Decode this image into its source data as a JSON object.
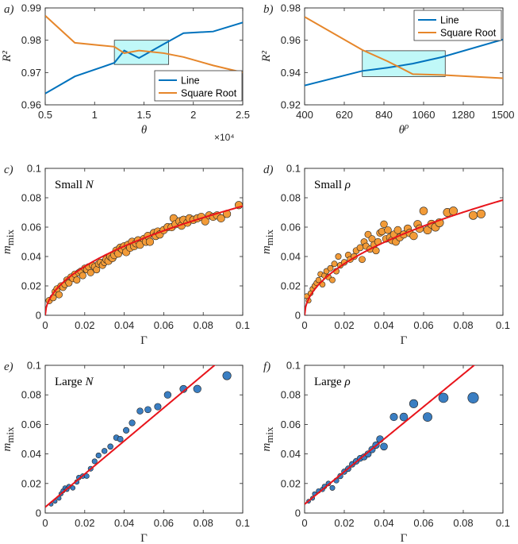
{
  "colors": {
    "line": "#0072BD",
    "sqrt": "#EDB120",
    "sqrt_line": "#E6862A",
    "fit": "#E8141B",
    "orange_pt": "#F29B38",
    "blue_pt": "#3A7EC2",
    "box": "#8CF2F2",
    "axis": "#262626"
  },
  "chart_data": [
    {
      "id": "a",
      "type": "line",
      "panel_label": "a)",
      "xlabel": "θ",
      "ylabel": "R²",
      "xlim": [
        5000,
        25000
      ],
      "ylim": [
        0.96,
        0.99
      ],
      "xticks": [
        5000,
        10000,
        15000,
        20000,
        25000
      ],
      "xtick_labels": [
        "0.5",
        "1",
        "1.5",
        "2",
        "2.5"
      ],
      "yticks": [
        0.96,
        0.97,
        0.98,
        0.99
      ],
      "ytick_labels": [
        "0.96",
        "0.97",
        "0.98",
        "0.99"
      ],
      "x_exponent": "×10⁴",
      "legend_position": "bottom-right",
      "box": {
        "x": [
          12000,
          17500
        ],
        "y": [
          0.9725,
          0.98
        ]
      },
      "series": [
        {
          "name": "Line",
          "color": "#0072BD",
          "x": [
            5000,
            8000,
            12000,
            13000,
            14500,
            17000,
            19000,
            22000,
            25000
          ],
          "y": [
            0.9635,
            0.9688,
            0.973,
            0.9768,
            0.9745,
            0.9788,
            0.9822,
            0.9827,
            0.9855
          ]
        },
        {
          "name": "Square Root",
          "color": "#E6862A",
          "x": [
            5000,
            8000,
            12000,
            13000,
            14500,
            17000,
            19000,
            22000,
            25000
          ],
          "y": [
            0.9876,
            0.9792,
            0.978,
            0.976,
            0.9768,
            0.976,
            0.9748,
            0.9722,
            0.97
          ]
        }
      ]
    },
    {
      "id": "b",
      "type": "line",
      "panel_label": "b)",
      "xlabel": "θ",
      "xlabel_sup": "ρ",
      "ylabel": "R²",
      "xlim": [
        400,
        1500
      ],
      "ylim": [
        0.92,
        0.98
      ],
      "xticks": [
        400,
        620,
        840,
        1060,
        1280,
        1500
      ],
      "xtick_labels": [
        "400",
        "620",
        "840",
        "1060",
        "1280",
        "1500"
      ],
      "yticks": [
        0.92,
        0.94,
        0.96,
        0.98
      ],
      "ytick_labels": [
        "0.92",
        "0.94",
        "0.96",
        "0.98"
      ],
      "legend_position": "top-right",
      "box": {
        "x": [
          720,
          1180
        ],
        "y": [
          0.9375,
          0.9535
        ]
      },
      "series": [
        {
          "name": "Line",
          "color": "#0072BD",
          "x": [
            400,
            720,
            860,
            1000,
            1160,
            1500
          ],
          "y": [
            0.932,
            0.941,
            0.943,
            0.9455,
            0.9495,
            0.9605
          ]
        },
        {
          "name": "Square Root",
          "color": "#E6862A",
          "x": [
            400,
            720,
            860,
            1000,
            1160,
            1500
          ],
          "y": [
            0.9745,
            0.954,
            0.947,
            0.939,
            0.9385,
            0.9365
          ]
        }
      ]
    },
    {
      "id": "c",
      "type": "scatter",
      "panel_label": "c)",
      "annotation_text": "Small",
      "annotation_var": "N",
      "xlabel": "Γ",
      "ylabel": "m",
      "ylabel_sub": "mix",
      "xlim": [
        0,
        0.1
      ],
      "ylim": [
        0,
        0.1
      ],
      "xticks": [
        0,
        0.02,
        0.04,
        0.06,
        0.08,
        0.1
      ],
      "xtick_labels": [
        "0",
        "0.02",
        "0.04",
        "0.06",
        "0.08",
        "0.1"
      ],
      "yticks": [
        0,
        0.02,
        0.04,
        0.06,
        0.08,
        0.1
      ],
      "ytick_labels": [
        "0",
        "0.02",
        "0.04",
        "0.06",
        "0.08",
        "0.1"
      ],
      "fit": {
        "kind": "sqrt",
        "a": 0.235,
        "color": "#E8141B"
      },
      "points": [
        [
          0.002,
          0.01
        ],
        [
          0.004,
          0.012
        ],
        [
          0.005,
          0.016
        ],
        [
          0.006,
          0.018
        ],
        [
          0.007,
          0.014
        ],
        [
          0.008,
          0.02
        ],
        [
          0.009,
          0.019
        ],
        [
          0.01,
          0.021
        ],
        [
          0.011,
          0.024
        ],
        [
          0.012,
          0.022
        ],
        [
          0.013,
          0.026
        ],
        [
          0.014,
          0.025
        ],
        [
          0.015,
          0.028
        ],
        [
          0.016,
          0.024
        ],
        [
          0.017,
          0.029
        ],
        [
          0.018,
          0.03
        ],
        [
          0.019,
          0.027
        ],
        [
          0.02,
          0.032
        ],
        [
          0.021,
          0.031
        ],
        [
          0.022,
          0.033
        ],
        [
          0.023,
          0.029
        ],
        [
          0.024,
          0.034
        ],
        [
          0.025,
          0.033
        ],
        [
          0.026,
          0.031
        ],
        [
          0.027,
          0.035
        ],
        [
          0.028,
          0.036
        ],
        [
          0.029,
          0.034
        ],
        [
          0.03,
          0.036
        ],
        [
          0.031,
          0.038
        ],
        [
          0.032,
          0.037
        ],
        [
          0.033,
          0.04
        ],
        [
          0.034,
          0.039
        ],
        [
          0.035,
          0.041
        ],
        [
          0.036,
          0.044
        ],
        [
          0.037,
          0.042
        ],
        [
          0.038,
          0.046
        ],
        [
          0.039,
          0.045
        ],
        [
          0.04,
          0.047
        ],
        [
          0.041,
          0.043
        ],
        [
          0.042,
          0.048
        ],
        [
          0.043,
          0.046
        ],
        [
          0.044,
          0.05
        ],
        [
          0.045,
          0.047
        ],
        [
          0.046,
          0.049
        ],
        [
          0.047,
          0.051
        ],
        [
          0.048,
          0.048
        ],
        [
          0.05,
          0.052
        ],
        [
          0.051,
          0.05
        ],
        [
          0.052,
          0.054
        ],
        [
          0.053,
          0.05
        ],
        [
          0.055,
          0.056
        ],
        [
          0.056,
          0.054
        ],
        [
          0.057,
          0.057
        ],
        [
          0.058,
          0.055
        ],
        [
          0.06,
          0.058
        ],
        [
          0.062,
          0.06
        ],
        [
          0.064,
          0.06
        ],
        [
          0.065,
          0.066
        ],
        [
          0.066,
          0.062
        ],
        [
          0.068,
          0.064
        ],
        [
          0.069,
          0.061
        ],
        [
          0.07,
          0.065
        ],
        [
          0.072,
          0.063
        ],
        [
          0.073,
          0.066
        ],
        [
          0.075,
          0.065
        ],
        [
          0.077,
          0.066
        ],
        [
          0.079,
          0.067
        ],
        [
          0.081,
          0.064
        ],
        [
          0.083,
          0.068
        ],
        [
          0.085,
          0.067
        ],
        [
          0.087,
          0.068
        ],
        [
          0.089,
          0.066
        ],
        [
          0.092,
          0.069
        ],
        [
          0.098,
          0.075
        ]
      ]
    },
    {
      "id": "d",
      "type": "scatter",
      "panel_label": "d)",
      "annotation_text": "Small",
      "annotation_var": "ρ",
      "xlabel": "Γ",
      "ylabel": "m",
      "ylabel_sub": "mix",
      "xlim": [
        0,
        0.1
      ],
      "ylim": [
        0,
        0.1
      ],
      "xticks": [
        0,
        0.02,
        0.04,
        0.06,
        0.08,
        0.1
      ],
      "xtick_labels": [
        "0",
        "0.02",
        "0.04",
        "0.06",
        "0.08",
        "0.1"
      ],
      "yticks": [
        0,
        0.02,
        0.04,
        0.06,
        0.08,
        0.1
      ],
      "ytick_labels": [
        "0",
        "0.02",
        "0.04",
        "0.06",
        "0.08",
        "0.1"
      ],
      "fit": {
        "kind": "sqrt",
        "a": 0.248,
        "color": "#E8141B"
      },
      "points": [
        [
          0.001,
          0.013
        ],
        [
          0.002,
          0.01
        ],
        [
          0.003,
          0.015
        ],
        [
          0.004,
          0.018
        ],
        [
          0.005,
          0.02
        ],
        [
          0.006,
          0.022
        ],
        [
          0.007,
          0.024
        ],
        [
          0.008,
          0.028
        ],
        [
          0.009,
          0.021
        ],
        [
          0.01,
          0.027
        ],
        [
          0.011,
          0.03
        ],
        [
          0.012,
          0.026
        ],
        [
          0.013,
          0.032
        ],
        [
          0.014,
          0.024
        ],
        [
          0.015,
          0.035
        ],
        [
          0.016,
          0.03
        ],
        [
          0.017,
          0.04
        ],
        [
          0.018,
          0.034
        ],
        [
          0.02,
          0.036
        ],
        [
          0.022,
          0.041
        ],
        [
          0.023,
          0.038
        ],
        [
          0.025,
          0.04
        ],
        [
          0.026,
          0.044
        ],
        [
          0.028,
          0.046
        ],
        [
          0.029,
          0.038
        ],
        [
          0.03,
          0.05
        ],
        [
          0.031,
          0.047
        ],
        [
          0.032,
          0.055
        ],
        [
          0.033,
          0.045
        ],
        [
          0.034,
          0.052
        ],
        [
          0.035,
          0.048
        ],
        [
          0.036,
          0.044
        ],
        [
          0.037,
          0.05
        ],
        [
          0.038,
          0.056
        ],
        [
          0.039,
          0.057
        ],
        [
          0.04,
          0.062
        ],
        [
          0.041,
          0.052
        ],
        [
          0.042,
          0.058
        ],
        [
          0.043,
          0.053
        ],
        [
          0.044,
          0.051
        ],
        [
          0.045,
          0.055
        ],
        [
          0.046,
          0.05
        ],
        [
          0.047,
          0.058
        ],
        [
          0.048,
          0.053
        ],
        [
          0.05,
          0.055
        ],
        [
          0.052,
          0.059
        ],
        [
          0.053,
          0.056
        ],
        [
          0.055,
          0.054
        ],
        [
          0.057,
          0.062
        ],
        [
          0.058,
          0.059
        ],
        [
          0.06,
          0.071
        ],
        [
          0.062,
          0.058
        ],
        [
          0.064,
          0.062
        ],
        [
          0.066,
          0.06
        ],
        [
          0.068,
          0.063
        ],
        [
          0.072,
          0.07
        ],
        [
          0.075,
          0.071
        ],
        [
          0.085,
          0.068
        ],
        [
          0.089,
          0.069
        ]
      ]
    },
    {
      "id": "e",
      "type": "scatter",
      "panel_label": "e)",
      "annotation_text": "Large",
      "annotation_var": "N",
      "xlabel": "Γ",
      "ylabel": "m",
      "ylabel_sub": "mix",
      "xlim": [
        0,
        0.1
      ],
      "ylim": [
        0,
        0.1
      ],
      "xticks": [
        0,
        0.02,
        0.04,
        0.06,
        0.08,
        0.1
      ],
      "xtick_labels": [
        "0",
        "0.02",
        "0.04",
        "0.06",
        "0.08",
        "0.1"
      ],
      "yticks": [
        0,
        0.02,
        0.04,
        0.06,
        0.08,
        0.1
      ],
      "ytick_labels": [
        "0",
        "0.02",
        "0.04",
        "0.06",
        "0.08",
        "0.1"
      ],
      "fit": {
        "kind": "linear",
        "slope": 1.12,
        "intercept": 0.004,
        "color": "#E8141B"
      },
      "points": [
        [
          0.003,
          0.006
        ],
        [
          0.005,
          0.008
        ],
        [
          0.007,
          0.01
        ],
        [
          0.008,
          0.013
        ],
        [
          0.009,
          0.015
        ],
        [
          0.01,
          0.017
        ],
        [
          0.011,
          0.016
        ],
        [
          0.012,
          0.018
        ],
        [
          0.014,
          0.017
        ],
        [
          0.016,
          0.021
        ],
        [
          0.017,
          0.024
        ],
        [
          0.019,
          0.025
        ],
        [
          0.021,
          0.025
        ],
        [
          0.023,
          0.03
        ],
        [
          0.025,
          0.035
        ],
        [
          0.027,
          0.039
        ],
        [
          0.03,
          0.042
        ],
        [
          0.033,
          0.045
        ],
        [
          0.036,
          0.051
        ],
        [
          0.038,
          0.05
        ],
        [
          0.041,
          0.056
        ],
        [
          0.044,
          0.061
        ],
        [
          0.048,
          0.069
        ],
        [
          0.052,
          0.07
        ],
        [
          0.057,
          0.072
        ],
        [
          0.062,
          0.08
        ],
        [
          0.07,
          0.084
        ],
        [
          0.077,
          0.084
        ],
        [
          0.092,
          0.093
        ]
      ]
    },
    {
      "id": "f",
      "type": "scatter",
      "panel_label": "f)",
      "annotation_text": "Large",
      "annotation_var": "ρ",
      "xlabel": "Γ",
      "ylabel": "m",
      "ylabel_sub": "mix",
      "xlim": [
        0,
        0.1
      ],
      "ylim": [
        0,
        0.1
      ],
      "xticks": [
        0,
        0.02,
        0.04,
        0.06,
        0.08,
        0.1
      ],
      "xtick_labels": [
        "0",
        "0.02",
        "0.04",
        "0.06",
        "0.08",
        "0.1"
      ],
      "yticks": [
        0,
        0.02,
        0.04,
        0.06,
        0.08,
        0.1
      ],
      "ytick_labels": [
        "0",
        "0.02",
        "0.04",
        "0.06",
        "0.08",
        "0.1"
      ],
      "fit": {
        "kind": "linear",
        "slope": 1.1,
        "intercept": 0.006,
        "color": "#E8141B"
      },
      "points": [
        [
          0.002,
          0.008
        ],
        [
          0.004,
          0.01
        ],
        [
          0.005,
          0.013
        ],
        [
          0.007,
          0.015
        ],
        [
          0.009,
          0.016
        ],
        [
          0.01,
          0.018
        ],
        [
          0.012,
          0.02
        ],
        [
          0.014,
          0.017
        ],
        [
          0.016,
          0.022
        ],
        [
          0.018,
          0.025
        ],
        [
          0.02,
          0.028
        ],
        [
          0.022,
          0.03
        ],
        [
          0.024,
          0.033
        ],
        [
          0.026,
          0.035
        ],
        [
          0.028,
          0.037
        ],
        [
          0.03,
          0.038
        ],
        [
          0.032,
          0.04
        ],
        [
          0.034,
          0.043
        ],
        [
          0.036,
          0.046
        ],
        [
          0.038,
          0.05
        ],
        [
          0.04,
          0.045
        ],
        [
          0.045,
          0.065
        ],
        [
          0.05,
          0.065
        ],
        [
          0.055,
          0.074
        ],
        [
          0.062,
          0.065
        ],
        [
          0.07,
          0.078
        ],
        [
          0.085,
          0.078
        ]
      ]
    }
  ]
}
